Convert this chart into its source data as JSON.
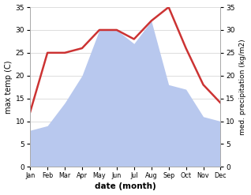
{
  "months": [
    "Jan",
    "Feb",
    "Mar",
    "Apr",
    "May",
    "Jun",
    "Jul",
    "Aug",
    "Sep",
    "Oct",
    "Nov",
    "Dec"
  ],
  "temperature": [
    12,
    25,
    25,
    26,
    30,
    30,
    28,
    32,
    35,
    26,
    18,
    14
  ],
  "precipitation": [
    8,
    9,
    14,
    20,
    30,
    30,
    27,
    32,
    18,
    17,
    11,
    10
  ],
  "temp_color": "#cc3333",
  "precip_color": "#b8c8ee",
  "ylim_left": [
    0,
    35
  ],
  "ylim_right": [
    0,
    35
  ],
  "yticks": [
    0,
    5,
    10,
    15,
    20,
    25,
    30,
    35
  ],
  "ylabel_left": "max temp (C)",
  "ylabel_right": "med. precipitation (kg/m2)",
  "xlabel": "date (month)",
  "fig_bg_color": "#ffffff",
  "plot_bg_color": "#ffffff",
  "temp_linewidth": 1.8,
  "grid_color": "#d0d0d0",
  "spine_color": "#aaaaaa"
}
